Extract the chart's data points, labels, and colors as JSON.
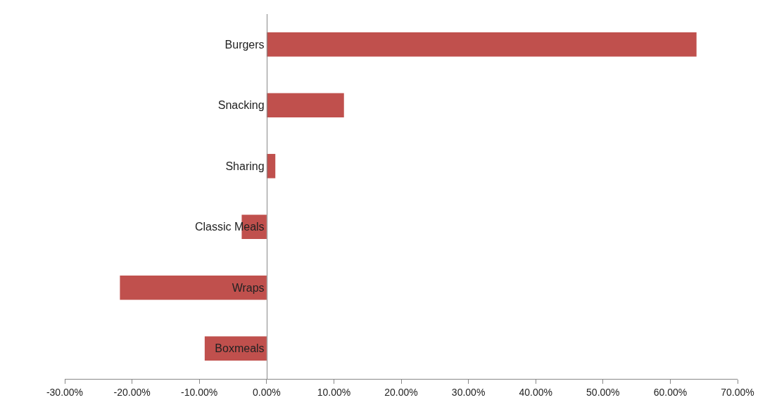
{
  "chart_data": {
    "type": "bar",
    "orientation": "horizontal",
    "categories": [
      "Burgers",
      "Snacking",
      "Sharing",
      "Classic Meals",
      "Wraps",
      "Boxmeals"
    ],
    "values": [
      63.9,
      11.5,
      1.3,
      -3.7,
      -21.8,
      -9.2
    ],
    "color": "#c0504d",
    "xlim": [
      -30,
      70
    ],
    "xticks": [
      {
        "value": -30,
        "label": "-30.00%"
      },
      {
        "value": -20,
        "label": "-20.00%"
      },
      {
        "value": -10,
        "label": "-10.00%"
      },
      {
        "value": 0,
        "label": "0.00%"
      },
      {
        "value": 10,
        "label": "10.00%"
      },
      {
        "value": 20,
        "label": "20.00%"
      },
      {
        "value": 30,
        "label": "30.00%"
      },
      {
        "value": 40,
        "label": "40.00%"
      },
      {
        "value": 50,
        "label": "50.00%"
      },
      {
        "value": 60,
        "label": "60.00%"
      },
      {
        "value": 70,
        "label": "70.00%"
      }
    ],
    "grid": false
  }
}
